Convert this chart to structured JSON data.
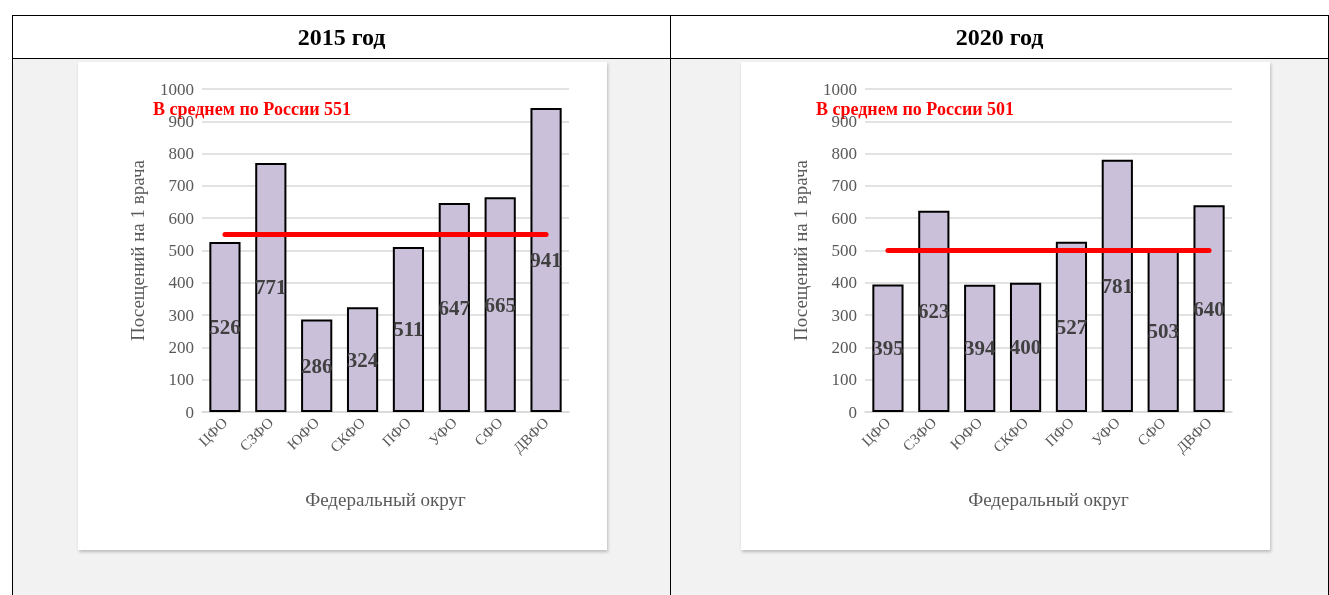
{
  "chart_data": [
    {
      "type": "bar",
      "title": "2015 год",
      "xlabel": "Федеральный округ",
      "ylabel": "Посещений на 1 врача",
      "categories": [
        "ЦФО",
        "СЗФО",
        "ЮФО",
        "СКФО",
        "ПФО",
        "УФО",
        "СФО",
        "ДВФО"
      ],
      "values": [
        526,
        771,
        286,
        324,
        511,
        647,
        665,
        941
      ],
      "color": "#cbc0da",
      "ylim": [
        0,
        1000
      ],
      "yticks": [
        0,
        100,
        200,
        300,
        400,
        500,
        600,
        700,
        800,
        900,
        1000
      ],
      "grid": "y",
      "data_labels": true,
      "ref_lines": [
        {
          "axis": "y",
          "value": 551,
          "label": "В среднем по России 551",
          "color": "#ff0000"
        }
      ]
    },
    {
      "type": "bar",
      "title": "2020 год",
      "xlabel": "Федеральный округ",
      "ylabel": "Посещений на 1 врача",
      "categories": [
        "ЦФО",
        "СЗФО",
        "ЮФО",
        "СКФО",
        "ПФО",
        "УФО",
        "СФО",
        "ДВФО"
      ],
      "values": [
        395,
        623,
        394,
        400,
        527,
        781,
        503,
        640
      ],
      "color": "#cbc0da",
      "ylim": [
        0,
        1000
      ],
      "yticks": [
        0,
        100,
        200,
        300,
        400,
        500,
        600,
        700,
        800,
        900,
        1000
      ],
      "grid": "y",
      "data_labels": true,
      "ref_lines": [
        {
          "axis": "y",
          "value": 501,
          "label": "В среднем по России 501",
          "color": "#ff0000"
        }
      ]
    }
  ]
}
